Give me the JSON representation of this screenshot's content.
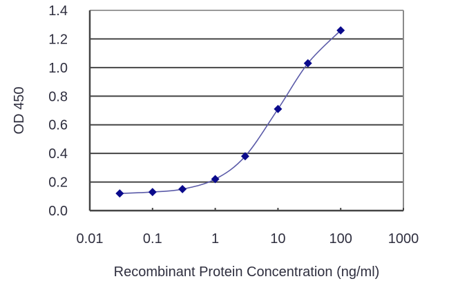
{
  "chart_data": {
    "type": "line",
    "title": "",
    "xlabel": "Recombinant Protein Concentration (ng/ml)",
    "ylabel": "OD 450",
    "x_scale": "log",
    "xlim": [
      0.01,
      1000
    ],
    "ylim": [
      0.0,
      1.4
    ],
    "x_ticks": [
      "0.01",
      "0.1",
      "1",
      "10",
      "100",
      "1000"
    ],
    "y_ticks": [
      "0.0",
      "0.2",
      "0.4",
      "0.6",
      "0.8",
      "1.0",
      "1.2",
      "1.4"
    ],
    "grid": {
      "horizontal": true,
      "vertical": false
    },
    "legend": null,
    "series": [
      {
        "name": "OD 450",
        "marker": "diamond",
        "color": "#0a0a8c",
        "line_color": "#5a5aa8",
        "x": [
          0.03,
          0.1,
          0.3,
          1,
          3,
          10,
          30,
          100
        ],
        "values": [
          0.12,
          0.13,
          0.15,
          0.22,
          0.38,
          0.71,
          1.03,
          1.26
        ]
      }
    ]
  },
  "colors": {
    "marker": "#0a0a8c",
    "curve": "#5a5aa8",
    "gridline": "#444444",
    "axis": "#444444",
    "text": "#2e2e3e"
  }
}
